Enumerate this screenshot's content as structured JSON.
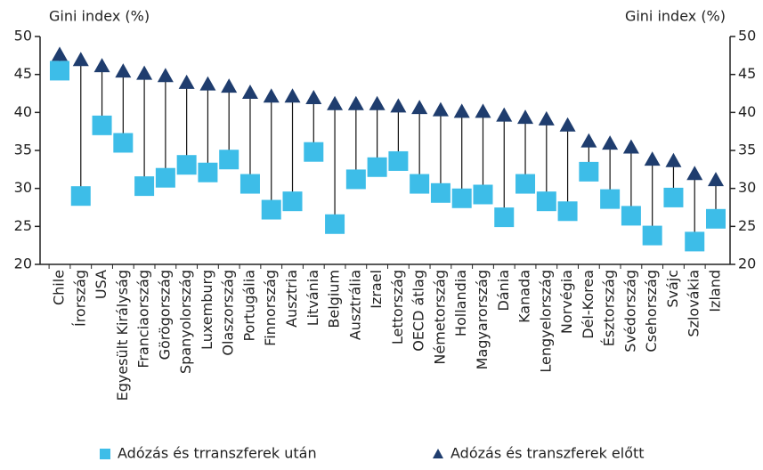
{
  "chart_data": {
    "type": "dumbbell",
    "y_label": "Gini index (%)",
    "y2_label": "Gini index (%)",
    "categories": [
      "Chile",
      "Írország",
      "USA",
      "Egyesült Királyság",
      "Franciaország",
      "Görögország",
      "Spanyolország",
      "Luxemburg",
      "Olaszország",
      "Portugália",
      "Finnország",
      "Ausztria",
      "Litvánia",
      "Belgium",
      "Ausztrália",
      "Izrael",
      "Lettország",
      "OECD átlag",
      "Németország",
      "Hollandia",
      "Magyarország",
      "Dánia",
      "Kanada",
      "Lengyelország",
      "Norvégia",
      "Dél-Korea",
      "Észtország",
      "Svédország",
      "Csehország",
      "Svájc",
      "Szlovákia",
      "Izland"
    ],
    "series": [
      {
        "name": "Adózás és trranszferek után",
        "color": "#3dbde8",
        "marker": "square",
        "values": [
          45.5,
          29,
          38.3,
          36,
          30.3,
          31.4,
          33.1,
          32.1,
          33.8,
          30.6,
          27.2,
          28.3,
          34.8,
          25.3,
          31.2,
          32.8,
          33.6,
          30.6,
          29.4,
          28.7,
          29.2,
          26.2,
          30.6,
          28.3,
          27,
          32.2,
          28.6,
          26.4,
          23.8,
          28.8,
          23,
          26
        ]
      },
      {
        "name": "Adózás és transzferek előtt",
        "color": "#1f3d6e",
        "marker": "triangle",
        "values": [
          47.5,
          46.8,
          46,
          45.3,
          45,
          44.7,
          43.8,
          43.6,
          43.3,
          42.5,
          42,
          42,
          41.8,
          41,
          41,
          41,
          40.7,
          40.5,
          40.2,
          40,
          40,
          39.5,
          39.2,
          39,
          38.2,
          36.1,
          35.8,
          35.3,
          33.7,
          33.5,
          31.8,
          31
        ]
      }
    ],
    "ylim": [
      20,
      50
    ],
    "yticks": [
      20,
      25,
      30,
      35,
      40,
      45,
      50
    ],
    "y2lim": [
      20,
      50
    ],
    "y2ticks": [
      20,
      25,
      30,
      35,
      40,
      45,
      50
    ],
    "legend": "bottom"
  }
}
